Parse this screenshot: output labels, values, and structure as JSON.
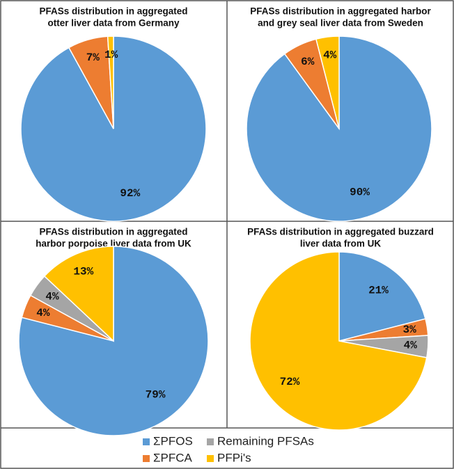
{
  "chart_data": [
    {
      "type": "pie",
      "title": [
        "PFASs distribution in aggregated",
        "otter liver data from Germany"
      ],
      "categories": [
        "ΣPFOS",
        "ΣPFCA",
        "PFPi's"
      ],
      "values": [
        92,
        7,
        1
      ],
      "value_labels": [
        "92%",
        "7%",
        "1%"
      ]
    },
    {
      "type": "pie",
      "title": [
        "PFASs distribution in aggregated harbor",
        "and grey seal liver data from Sweden"
      ],
      "categories": [
        "ΣPFOS",
        "ΣPFCA",
        "PFPi's"
      ],
      "values": [
        90,
        6,
        4
      ],
      "value_labels": [
        "90%",
        "6%",
        "4%"
      ]
    },
    {
      "type": "pie",
      "title": [
        "PFASs distribution in aggregated",
        "harbor porpoise liver data from UK"
      ],
      "categories": [
        "ΣPFOS",
        "ΣPFCA",
        "Remaining PFSAs",
        "PFPi's"
      ],
      "values": [
        79,
        4,
        4,
        13
      ],
      "value_labels": [
        "79%",
        "4%",
        "4%",
        "13%"
      ]
    },
    {
      "type": "pie",
      "title": [
        "PFASs distribution in aggregated buzzard",
        "liver data from UK"
      ],
      "categories": [
        "ΣPFOS",
        "ΣPFCA",
        "Remaining PFSAs",
        "PFPi's"
      ],
      "values": [
        21,
        3,
        4,
        72
      ],
      "value_labels": [
        "21%",
        "3%",
        "4%",
        "72%"
      ]
    }
  ],
  "legend": [
    {
      "name": "ΣPFOS",
      "color": "#5b9bd5"
    },
    {
      "name": "Remaining PFSAs",
      "color": "#a5a5a5"
    },
    {
      "name": "ΣPFCA",
      "color": "#ed7d31"
    },
    {
      "name": "PFPi's",
      "color": "#ffc000"
    }
  ]
}
